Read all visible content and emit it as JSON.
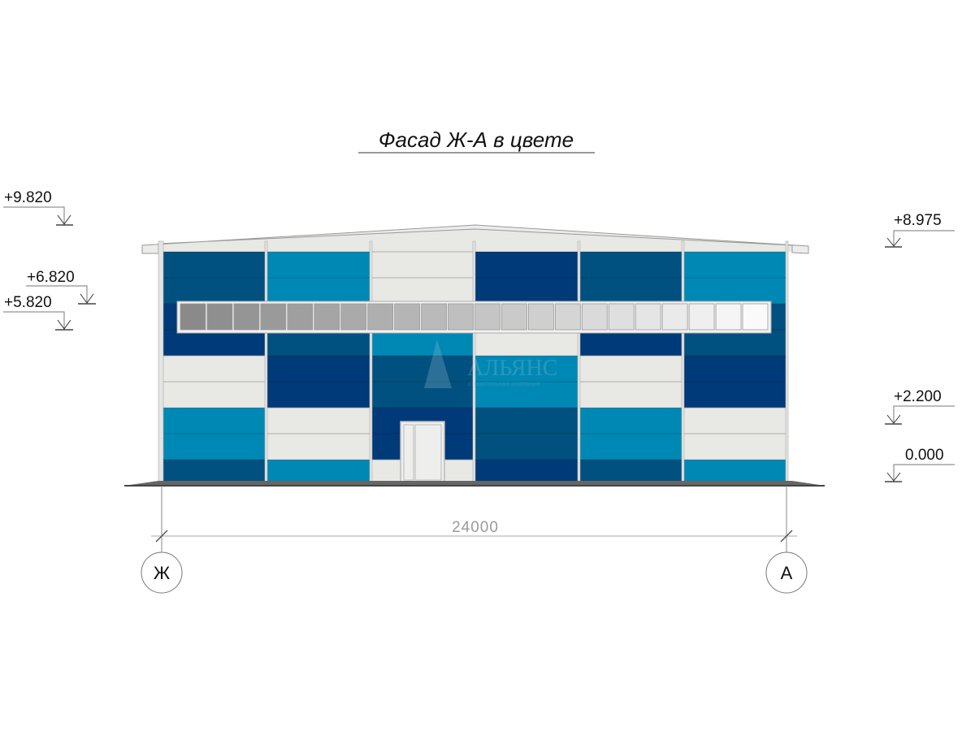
{
  "title": "Фасад Ж-А в цвете",
  "levels_left": [
    "+9.820",
    "+6.820",
    "+5.820"
  ],
  "levels_right": [
    "+8.975",
    "+2.200",
    "0.000"
  ],
  "dimension": "24000",
  "axes": [
    "Ж",
    "А"
  ],
  "watermark": {
    "name": "АЛЬЯНС",
    "tagline": "строительная компания"
  },
  "colors": {
    "D": "#003a78",
    "M": "#00517f",
    "L": "#0088b5",
    "W": "#e8e8e5",
    "frame": "#c8c8c8"
  },
  "panel_grid": [
    [
      "M",
      "M",
      "D",
      "D",
      "W",
      "W",
      "L",
      "L",
      "M"
    ],
    [
      "L",
      "L",
      "M",
      "M",
      "D",
      "D",
      "W",
      "W",
      "L"
    ],
    [
      "W",
      "W",
      "L",
      "L",
      "M",
      "M",
      "D",
      "D",
      "W"
    ],
    [
      "D",
      "D",
      "W",
      "W",
      "L",
      "L",
      "M",
      "M",
      "D"
    ],
    [
      "M",
      "M",
      "D",
      "D",
      "W",
      "W",
      "L",
      "L",
      "M"
    ],
    [
      "L",
      "L",
      "M",
      "M",
      "D",
      "D",
      "W",
      "W",
      "L"
    ]
  ],
  "window_band": {
    "panes": 22,
    "gradient": [
      "#8a8a8a",
      "#fafafa"
    ]
  }
}
